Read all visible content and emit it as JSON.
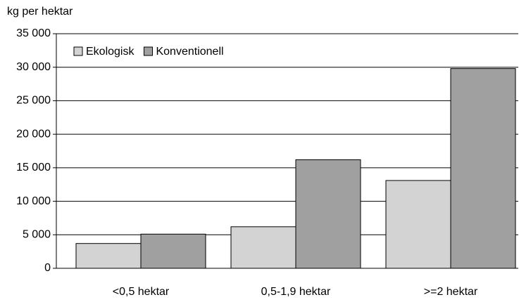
{
  "chart_data": {
    "type": "bar",
    "y_axis_label": "kg per hektar",
    "categories": [
      "<0,5 hektar",
      "0,5-1,9 hektar",
      ">=2 hektar"
    ],
    "series": [
      {
        "name": "Ekologisk",
        "color": "#d3d3d3",
        "values": [
          3700,
          6200,
          13100
        ]
      },
      {
        "name": "Konventionell",
        "color": "#a0a0a0",
        "values": [
          5100,
          16200,
          29800
        ]
      }
    ],
    "ylim": [
      0,
      35000
    ],
    "yticks": [
      0,
      {
        "value": 5000,
        "label": "5 000"
      },
      {
        "value": 10000,
        "label": "10 000"
      },
      {
        "value": 15000,
        "label": "15 000"
      },
      {
        "value": 20000,
        "label": "20 000"
      },
      {
        "value": 25000,
        "label": "25 000"
      },
      {
        "value": 30000,
        "label": "30 000"
      },
      {
        "value": 35000,
        "label": "35 000"
      }
    ],
    "grid": true,
    "legend": "top-left"
  }
}
